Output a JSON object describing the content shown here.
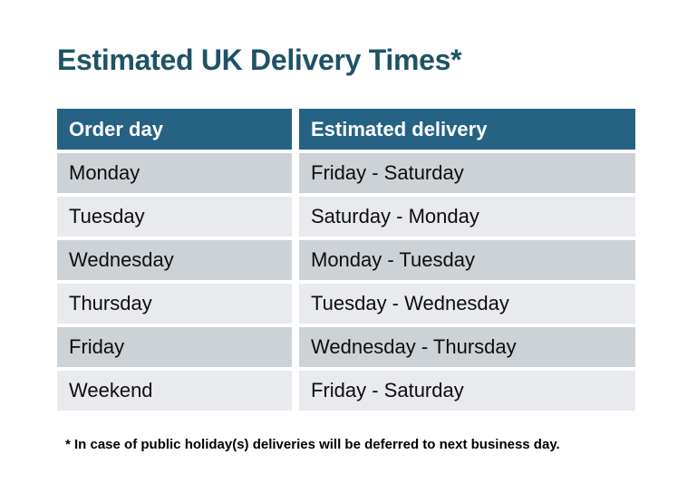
{
  "title": "Estimated UK Delivery Times*",
  "table": {
    "headers": [
      "Order day",
      "Estimated delivery"
    ],
    "rows": [
      [
        "Monday",
        "Friday - Saturday"
      ],
      [
        "Tuesday",
        "Saturday - Monday"
      ],
      [
        "Wednesday",
        "Monday - Tuesday"
      ],
      [
        "Thursday",
        "Tuesday - Wednesday"
      ],
      [
        "Friday",
        "Wednesday - Thursday"
      ],
      [
        "Weekend",
        "Friday - Saturday"
      ]
    ]
  },
  "footnote": "* In case of public holiday(s) deliveries will be deferred to next business day.",
  "colors": {
    "title_color": "#1e5365",
    "header_bg": "#266284",
    "header_text": "#ffffff",
    "row_odd": "#cdd2d7",
    "row_even": "#e8eaed",
    "cell_text": "#0d0d0d",
    "footnote_color": "#000000",
    "page_bg": "#ffffff"
  }
}
